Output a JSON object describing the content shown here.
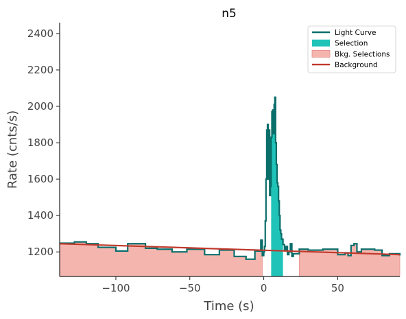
{
  "chart_data": {
    "type": "line",
    "title": "n5",
    "xlabel": "Time (s)",
    "ylabel": "Rate (cnts/s)",
    "xlim": [
      -138,
      92
    ],
    "ylim": [
      1065,
      2460
    ],
    "xticks": [
      -100,
      -50,
      0,
      50
    ],
    "xtick_labels": [
      "−100",
      "−50",
      "0",
      "50"
    ],
    "yticks": [
      1200,
      1400,
      1600,
      1800,
      2000,
      2200,
      2400
    ],
    "ytick_labels": [
      "1200",
      "1400",
      "1600",
      "1800",
      "2000",
      "2200",
      "2400"
    ],
    "grid": false,
    "legend_position": "top-right",
    "colors": {
      "light_curve": "#0a6e6b",
      "selection": "#1fc3b8",
      "bkg_selection": "#f4b5ae",
      "bkg_selection_edge": "#e4928a",
      "background": "#c0392b",
      "axis": "#222222"
    },
    "legend": [
      {
        "label": "Light Curve",
        "kind": "line",
        "color_key": "light_curve"
      },
      {
        "label": "Selection",
        "kind": "patch",
        "color_key": "selection"
      },
      {
        "label": "Bkg. Selections",
        "kind": "patch",
        "color_key": "bkg_selection"
      },
      {
        "label": "Background",
        "kind": "line",
        "color_key": "background"
      }
    ],
    "series": [
      {
        "name": "Light Curve",
        "kind": "step",
        "x": [
          -138,
          -128,
          -120,
          -112,
          -100,
          -92,
          -80,
          -72,
          -62,
          -52,
          -40,
          -30,
          -20,
          -12,
          -6,
          -2,
          -1,
          0,
          0.5,
          1,
          1.5,
          2,
          2.5,
          3,
          3.5,
          4,
          4.5,
          5,
          5.5,
          6,
          6.5,
          7,
          7.5,
          8,
          8.5,
          9,
          9.5,
          10,
          10.5,
          11,
          11.5,
          12,
          13,
          14,
          15,
          16,
          17,
          18,
          19,
          20,
          22,
          24,
          30,
          40,
          50,
          55,
          57,
          59,
          61,
          63,
          66,
          75,
          80,
          85,
          92
        ],
        "y": [
          1248,
          1255,
          1245,
          1225,
          1205,
          1245,
          1220,
          1215,
          1200,
          1215,
          1185,
          1210,
          1175,
          1160,
          1205,
          1265,
          1180,
          1200,
          1230,
          1370,
          1600,
          1870,
          1900,
          1600,
          1870,
          1510,
          1560,
          1830,
          1970,
          1980,
          1850,
          2010,
          2050,
          1800,
          1680,
          1580,
          1560,
          1480,
          1400,
          1320,
          1300,
          1270,
          1240,
          1210,
          1230,
          1185,
          1200,
          1245,
          1175,
          1190,
          1190,
          1215,
          1210,
          1215,
          1185,
          1195,
          1180,
          1235,
          1245,
          1200,
          1215,
          1210,
          1180,
          1190,
          1180
        ]
      },
      {
        "name": "Background",
        "kind": "line",
        "x": [
          -138,
          92
        ],
        "y": [
          1245,
          1185
        ]
      }
    ],
    "selection": {
      "x": [
        5,
        13
      ]
    },
    "bkg_selections": [
      {
        "x": [
          -138,
          -1
        ]
      },
      {
        "x": [
          24,
          92
        ]
      }
    ]
  }
}
